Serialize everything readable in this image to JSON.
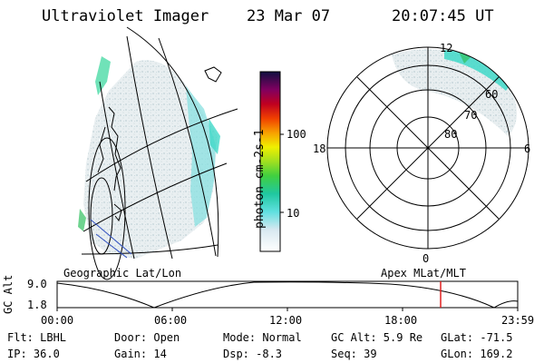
{
  "header": {
    "instrument": "Ultraviolet Imager",
    "date": "23 Mar 07",
    "time": "20:07:45 UT"
  },
  "colorbar": {
    "label": "photon cm-2s-1",
    "ticks": [
      "100",
      "10"
    ]
  },
  "panels": {
    "left_caption": "Geographic Lat/Lon",
    "right_caption": "Apex MLat/MLT"
  },
  "polar": {
    "mlt_labels": {
      "top": "12",
      "left": "18",
      "right": "6",
      "bottom": "0"
    },
    "lat_labels": [
      "60",
      "70",
      "80"
    ]
  },
  "altitude_plot": {
    "ylabel": "GC Alt",
    "ytick_top": "9.0",
    "ytick_bottom": "1.8",
    "xticks": [
      "00:00",
      "06:00",
      "12:00",
      "18:00",
      "23:59"
    ]
  },
  "status": {
    "flt": "Flt: LBHL",
    "ip": "IP: 36.0",
    "door": "Door: Open",
    "gain": "Gain: 14",
    "mode": "Mode: Normal",
    "dsp": "Dsp:   -8.3",
    "gcalt": "GC Alt: 5.9 Re",
    "seq": "Seq: 39",
    "glat": "GLat: -71.5",
    "glon": "GLon: 169.2"
  },
  "colors": {
    "aurora_teal": "#40d8c8",
    "aurora_green": "#30c060",
    "marker_red": "#e02020"
  }
}
